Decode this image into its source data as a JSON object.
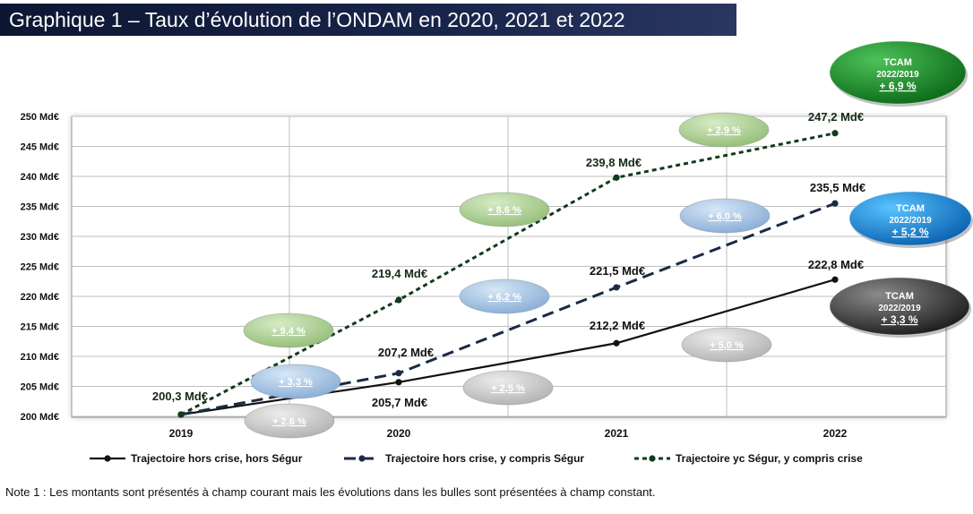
{
  "header": {
    "title": "Graphique 1 – Taux d’évolution de l’ONDAM en 2020, 2021 et 2022"
  },
  "chart_data": {
    "type": "line",
    "title": "Graphique 1 – Taux d’évolution de l’ONDAM en 2020, 2021 et 2022",
    "categories": [
      "2019",
      "2020",
      "2021",
      "2022"
    ],
    "ylim": [
      200,
      250
    ],
    "yticks": [
      "200 Md€",
      "205 Md€",
      "210 Md€",
      "215 Md€",
      "220 Md€",
      "225 Md€",
      "230 Md€",
      "235 Md€",
      "240 Md€",
      "245 Md€",
      "250 Md€"
    ],
    "series": [
      {
        "name": "Trajectoire hors crise, hors Ségur",
        "style": "solid",
        "values": [
          200.3,
          205.7,
          212.2,
          222.8
        ],
        "labels": [
          "",
          "205,7 Md€",
          "212,2 Md€",
          "222,8 Md€"
        ],
        "bubbles": [
          "+ 2,6 %",
          "+ 2,5 %",
          "+ 5,0 %"
        ],
        "bubble_color": "#c8c8c8",
        "tcam": {
          "title": "TCAM",
          "period": "2022/2019",
          "value": "+ 3,3 %",
          "color": "#333333"
        }
      },
      {
        "name": "Trajectoire hors crise,  y compris  Ségur",
        "style": "dashed",
        "values": [
          200.3,
          207.2,
          221.5,
          235.5
        ],
        "labels": [
          "",
          "207,2 Md€",
          "221,5 Md€",
          "235,5 Md€"
        ],
        "bubbles": [
          "+ 3,3 %",
          "+ 6,2 %",
          "+ 6,0 %"
        ],
        "bubble_color": "#a9c6e4",
        "tcam": {
          "title": "TCAM",
          "period": "2022/2019",
          "value": "+ 5,2 %",
          "color": "#1591de"
        }
      },
      {
        "name": "Trajectoire yc  Ségur, y compris crise",
        "style": "dotted",
        "values": [
          200.3,
          219.4,
          239.8,
          247.2
        ],
        "labels": [
          "200,3 Md€",
          "219,4 Md€",
          "239,8 Md€",
          "247,2 Md€"
        ],
        "bubbles": [
          "+ 9,4 %",
          "+ 8,6 %",
          "+ 2,9 %"
        ],
        "bubble_color": "#b3d39a",
        "tcam": {
          "title": "TCAM",
          "period": "2022/2019",
          "value": "+ 6,9 %",
          "color": "#1e8a2a"
        }
      }
    ],
    "note": "Note 1 : Les montants sont présentés à champ courant mais les évolutions dans les bulles sont présentées à champ constant."
  },
  "colors": {
    "line_main": "#111111",
    "line_dashed": "#1a2a44",
    "line_dotted": "#123a1c",
    "label_dark": "#142a14",
    "grid": "#bfbfbf"
  }
}
